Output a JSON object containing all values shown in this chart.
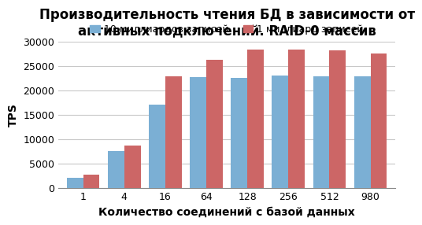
{
  "title": "Производительность чтения БД в зависимости от\nактивных подключений. RAID-0 массив",
  "xlabel": "Количество соединений с базой данных",
  "ylabel": "TPS",
  "categories": [
    "1",
    "4",
    "16",
    "64",
    "128",
    "256",
    "512",
    "980"
  ],
  "series1_label": "10 миллиардов записей",
  "series2_label": "1 миллиард записей",
  "series1_values": [
    2100,
    7500,
    17000,
    22700,
    22600,
    23000,
    22800,
    22800
  ],
  "series2_values": [
    2600,
    8600,
    22800,
    26200,
    28300,
    28300,
    28200,
    27500
  ],
  "series1_color": "#7BAFD4",
  "series2_color": "#CC6666",
  "ylim": [
    0,
    30000
  ],
  "yticks": [
    0,
    5000,
    10000,
    15000,
    20000,
    25000,
    30000
  ],
  "background_color": "#FFFFFF",
  "plot_bg_color": "#FFFFFF",
  "grid_color": "#C8C8C8",
  "title_fontsize": 12,
  "axis_label_fontsize": 10,
  "tick_fontsize": 9,
  "legend_fontsize": 9
}
